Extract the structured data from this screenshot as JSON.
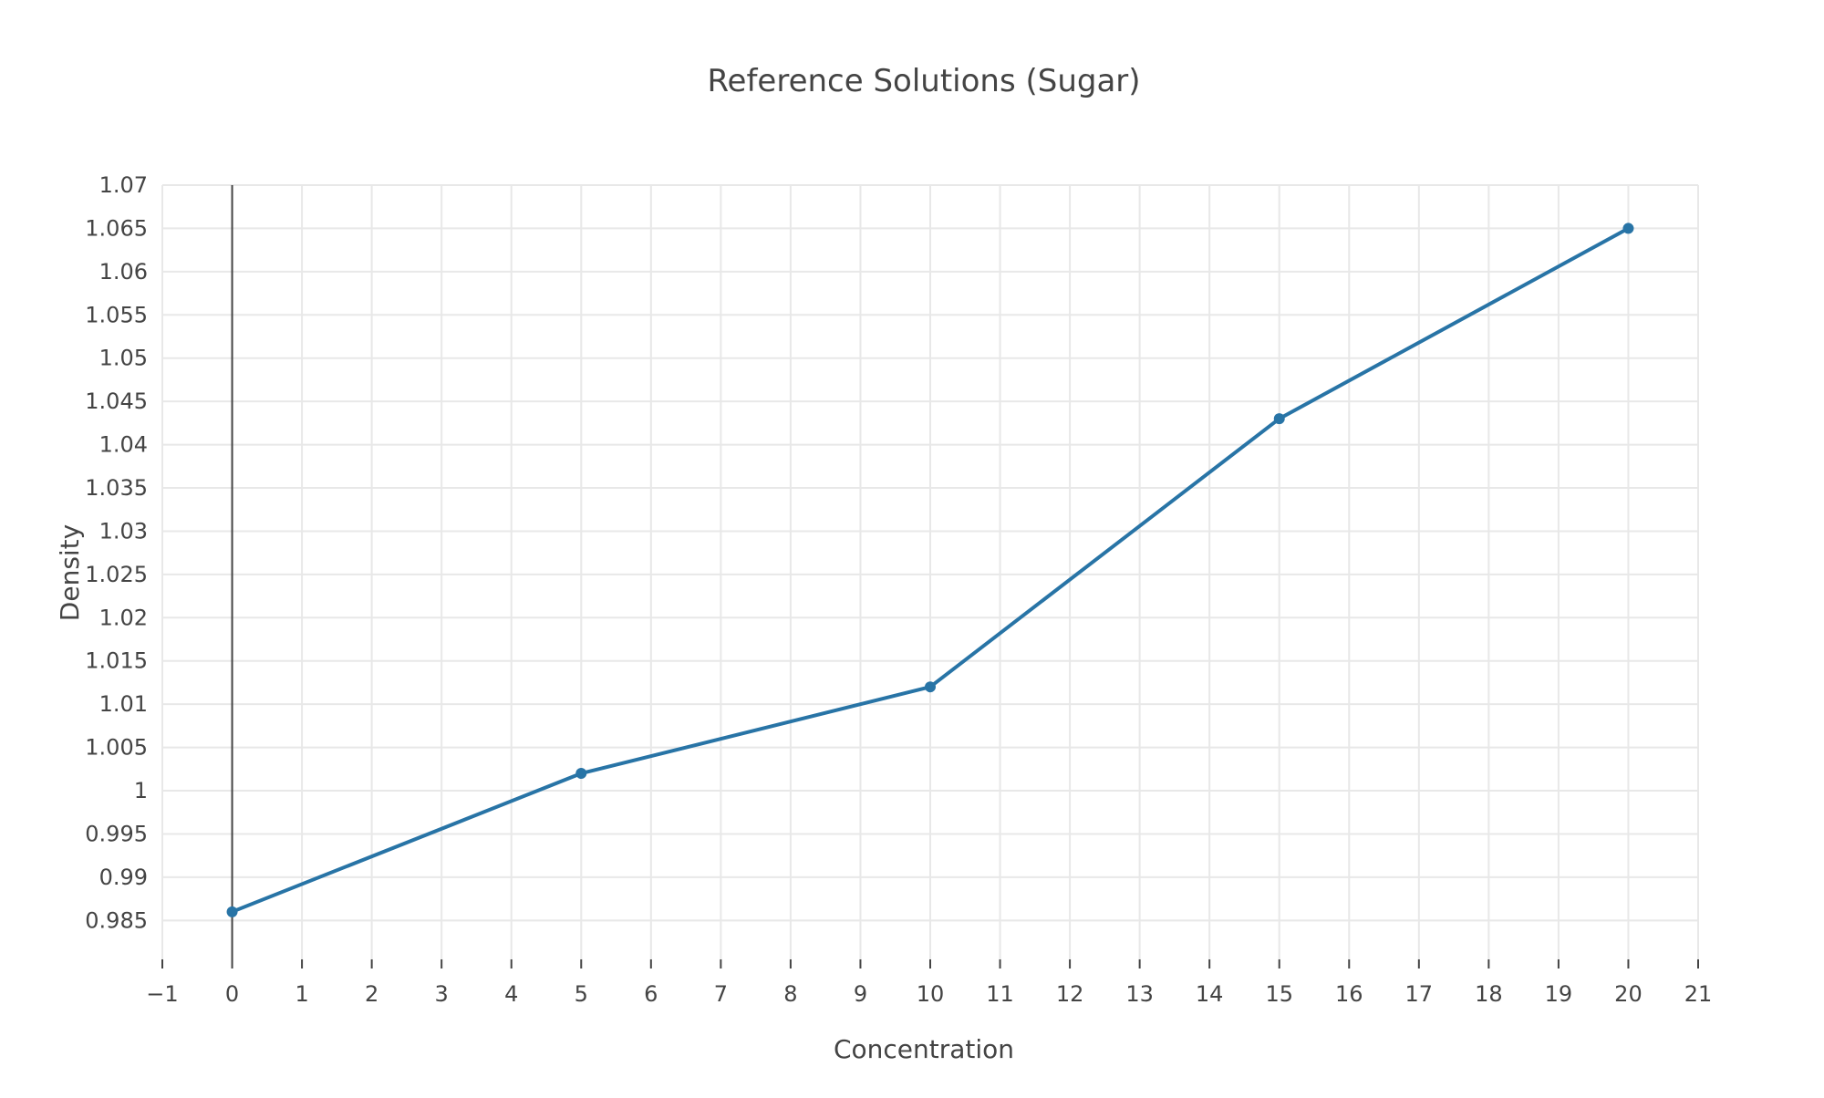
{
  "chart_data": {
    "type": "line",
    "title": "Reference Solutions (Sugar)",
    "xlabel": "Concentration",
    "ylabel": "Density",
    "x": [
      0,
      5,
      10,
      15,
      20
    ],
    "series": [
      {
        "values": [
          0.986,
          1.002,
          1.012,
          1.043,
          1.065
        ],
        "color": "#2874a6"
      }
    ],
    "xlim": [
      -1,
      21
    ],
    "ylim": [
      0.9805,
      1.07
    ],
    "xticks": [
      -1,
      0,
      1,
      2,
      3,
      4,
      5,
      6,
      7,
      8,
      9,
      10,
      11,
      12,
      13,
      14,
      15,
      16,
      17,
      18,
      19,
      20,
      21
    ],
    "xtick_labels": [
      "−1",
      "0",
      "1",
      "2",
      "3",
      "4",
      "5",
      "6",
      "7",
      "8",
      "9",
      "10",
      "11",
      "12",
      "13",
      "14",
      "15",
      "16",
      "17",
      "18",
      "19",
      "20",
      "21"
    ],
    "yticks": [
      0.985,
      0.99,
      0.995,
      1,
      1.005,
      1.01,
      1.015,
      1.02,
      1.025,
      1.03,
      1.035,
      1.04,
      1.045,
      1.05,
      1.055,
      1.06,
      1.065,
      1.07
    ],
    "ytick_labels": [
      "0.985",
      "0.99",
      "0.995",
      "1",
      "1.005",
      "1.01",
      "1.015",
      "1.02",
      "1.025",
      "1.03",
      "1.035",
      "1.04",
      "1.045",
      "1.05",
      "1.055",
      "1.06",
      "1.065",
      "1.07"
    ],
    "grid": true,
    "zero_line_x": 0,
    "markers": true
  }
}
